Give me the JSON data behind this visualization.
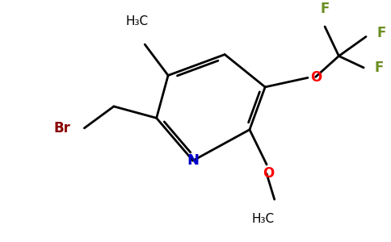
{
  "bg_color": "#ffffff",
  "bond_color": "#000000",
  "N_color": "#0000cd",
  "O_color": "#ff0000",
  "F_color": "#6b8e23",
  "Br_color": "#8b0000",
  "line_width": 2.0,
  "fig_width": 4.84,
  "fig_height": 3.0,
  "dpi": 100,
  "xlim": [
    0,
    484
  ],
  "ylim": [
    0,
    300
  ]
}
